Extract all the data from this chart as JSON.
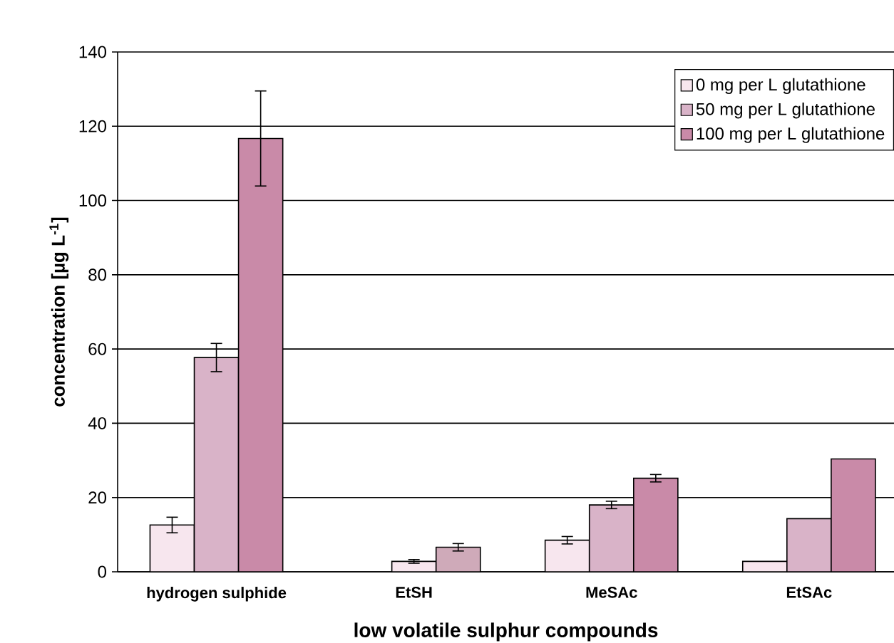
{
  "chart_data": {
    "type": "bar",
    "xlabel": "low volatile sulphur compounds",
    "ylabel": "concentration [µg L$^{-1}$]",
    "categories": [
      "hydrogen sulphide",
      "EtSH",
      "MeSAc",
      "EtSAc"
    ],
    "series": [
      {
        "name": "0 mg per L glutathione",
        "color": "#f7e6ee",
        "values": [
          12.6,
          null,
          8.5,
          2.8
        ],
        "errors": [
          2.1,
          null,
          1.0,
          null
        ]
      },
      {
        "name": "50 mg per L glutathione",
        "color": "#d9b3c8",
        "colors": [
          "#d9b3c8",
          "#f7e6ee",
          "#d9b3c8",
          "#d9b3c8"
        ],
        "values": [
          57.7,
          2.8,
          18.0,
          14.3
        ],
        "errors": [
          3.8,
          0.5,
          1.0,
          null
        ]
      },
      {
        "name": "100 mg per L glutathione",
        "color": "#c98aa8",
        "colors": [
          "#c98aa8",
          "#cfaab9",
          "#c98aa8",
          "#c98aa8"
        ],
        "values": [
          116.7,
          6.6,
          25.2,
          30.4
        ],
        "errors": [
          12.8,
          1.0,
          1.0,
          null
        ]
      }
    ],
    "ylim": [
      0,
      140
    ],
    "yticks": [
      0,
      20,
      40,
      60,
      80,
      100,
      120,
      140
    ],
    "grid": "y",
    "legend": "top right"
  }
}
